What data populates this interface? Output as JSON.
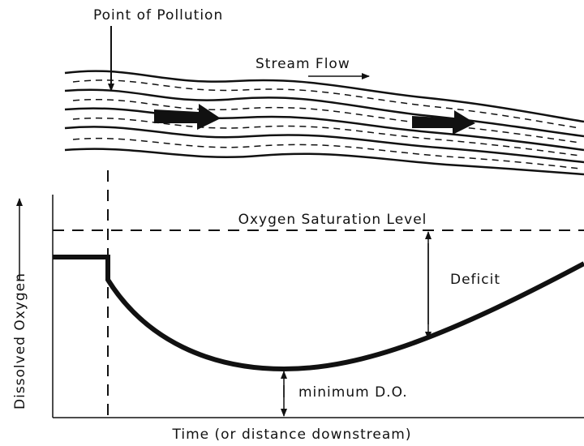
{
  "labels": {
    "point_of_pollution": "Point of Pollution",
    "stream_flow": "Stream Flow",
    "saturation": "Oxygen Saturation Level",
    "deficit": "Deficit",
    "minimum": "minimum D.O.",
    "y_axis": "Dissolved Oxygen",
    "x_axis": "Time (or distance downstream)"
  }
}
